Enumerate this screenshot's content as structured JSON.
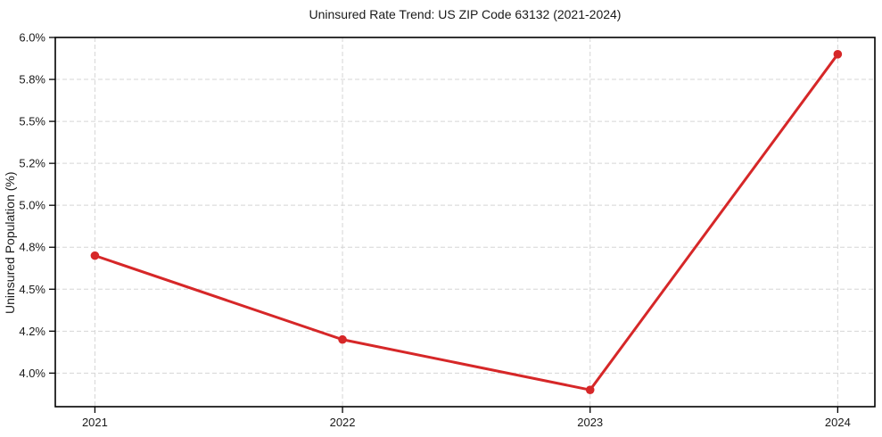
{
  "chart_data": {
    "type": "line",
    "title": "Uninsured Rate Trend: US ZIP Code 63132 (2021-2024)",
    "xlabel": "",
    "ylabel": "Uninsured Population (%)",
    "x": [
      2021,
      2022,
      2023,
      2024
    ],
    "series": [
      {
        "name": "Uninsured population percent",
        "values": [
          4.7,
          4.2,
          3.9,
          5.9
        ]
      }
    ],
    "xlim": [
      2020.84,
      2024.15
    ],
    "ylim": [
      3.8,
      6.0
    ],
    "xticks": [
      {
        "value": 2021,
        "label": "2021"
      },
      {
        "value": 2022,
        "label": "2022"
      },
      {
        "value": 2023,
        "label": "2023"
      },
      {
        "value": 2024,
        "label": "2024"
      }
    ],
    "yticks": [
      {
        "value": 4.0,
        "label": "4.0%"
      },
      {
        "value": 4.25,
        "label": "4.2%"
      },
      {
        "value": 4.5,
        "label": "4.5%"
      },
      {
        "value": 4.75,
        "label": "4.8%"
      },
      {
        "value": 5.0,
        "label": "5.0%"
      },
      {
        "value": 5.25,
        "label": "5.2%"
      },
      {
        "value": 5.5,
        "label": "5.5%"
      },
      {
        "value": 5.75,
        "label": "5.8%"
      },
      {
        "value": 6.0,
        "label": "6.0%"
      }
    ],
    "grid": true,
    "grid_style": "dashed",
    "legend": false,
    "colors": {
      "line": "#d62728",
      "marker": "#d62728",
      "grid": "#d5d5d5",
      "spine": "#000000",
      "tick": "#000000",
      "text": "#1a1a1a",
      "background": "#ffffff"
    }
  }
}
